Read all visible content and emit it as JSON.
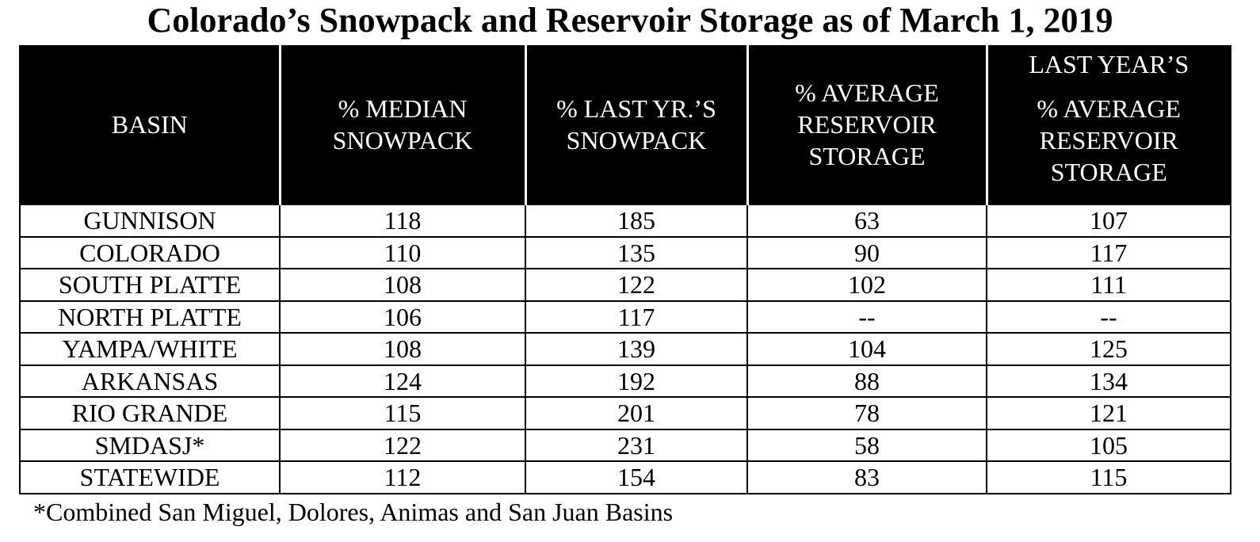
{
  "title": "Colorado’s Snowpack and Reservoir Storage as of March 1, 2019",
  "table": {
    "headers": {
      "basin": "BASIN",
      "median_snowpack": [
        "% MEDIAN",
        "SNOWPACK"
      ],
      "last_yr_snowpack": [
        "% LAST YR.’S",
        "SNOWPACK"
      ],
      "avg_reservoir_storage": [
        "% AVERAGE",
        "RESERVOIR",
        "STORAGE"
      ],
      "last_year_avg_reservoir_storage": {
        "top": "LAST YEAR’S",
        "lines": [
          "% AVERAGE",
          "RESERVOIR",
          "STORAGE"
        ]
      }
    },
    "rows": [
      [
        "GUNNISON",
        "118",
        "185",
        "63",
        "107"
      ],
      [
        "COLORADO",
        "110",
        "135",
        "90",
        "117"
      ],
      [
        "SOUTH PLATTE",
        "108",
        "122",
        "102",
        "111"
      ],
      [
        "NORTH PLATTE",
        "106",
        "117",
        "--",
        "--"
      ],
      [
        "YAMPA/WHITE",
        "108",
        "139",
        "104",
        "125"
      ],
      [
        "ARKANSAS",
        "124",
        "192",
        "88",
        "134"
      ],
      [
        "RIO GRANDE",
        "115",
        "201",
        "78",
        "121"
      ],
      [
        "SMDASJ*",
        "122",
        "231",
        "58",
        "105"
      ],
      [
        "STATEWIDE",
        "112",
        "154",
        "83",
        "115"
      ]
    ]
  },
  "footnote": "*Combined San Miguel, Dolores, Animas and San Juan Basins",
  "colors": {
    "header_background": "#000000",
    "header_text": "#ffffff",
    "border": "#000000"
  }
}
